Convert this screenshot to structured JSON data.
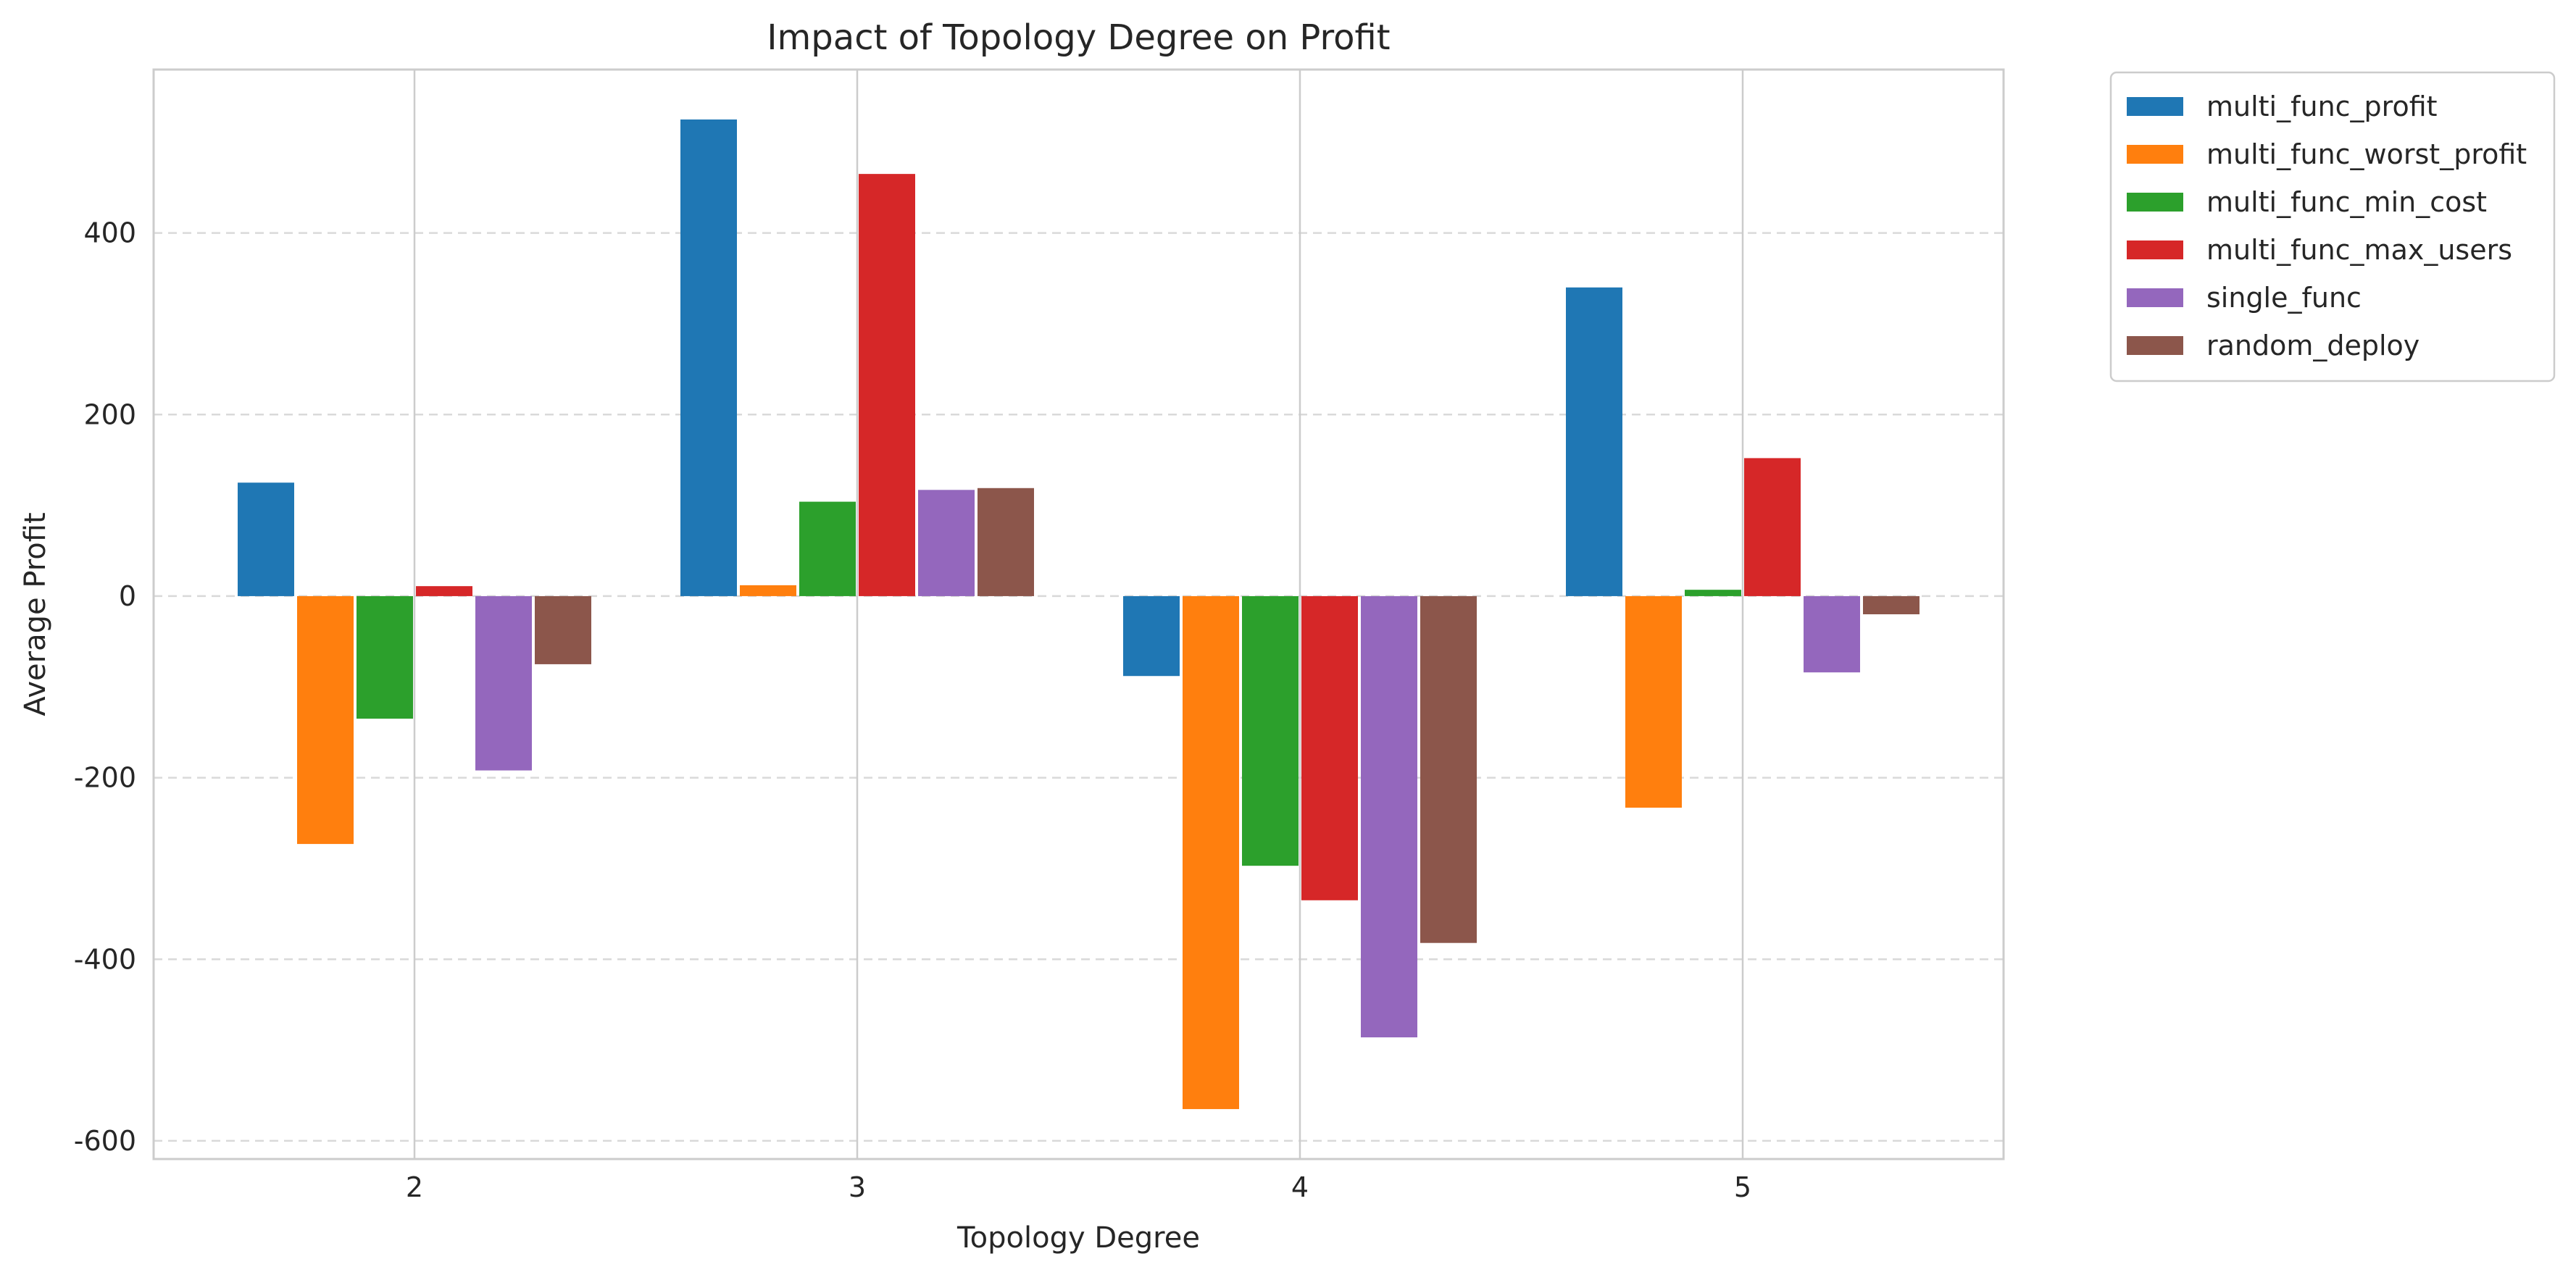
{
  "chart_data": {
    "type": "bar",
    "title": "Impact of Topology Degree on Profit",
    "xlabel": "Topology Degree",
    "ylabel": "Average Profit",
    "categories": [
      "2",
      "3",
      "4",
      "5"
    ],
    "ylim": [
      -620,
      580
    ],
    "yticks": [
      400,
      200,
      0,
      -200,
      -400,
      -600
    ],
    "ytick_labels": [
      "400",
      "200",
      "0",
      "-200",
      "-400",
      "-600"
    ],
    "grid": {
      "y": "dashed",
      "x": "solid"
    },
    "legend_placement": "outside-top-right",
    "series": [
      {
        "name": "multi_func_profit",
        "color": "#1f77b4",
        "values": [
          125,
          525,
          -88,
          340
        ]
      },
      {
        "name": "multi_func_worst_profit",
        "color": "#ff7f0e",
        "values": [
          -273,
          12,
          -565,
          -233
        ]
      },
      {
        "name": "multi_func_min_cost",
        "color": "#2ca02c",
        "values": [
          -135,
          104,
          -297,
          7
        ]
      },
      {
        "name": "multi_func_max_users",
        "color": "#d62728",
        "values": [
          11,
          465,
          -335,
          152
        ]
      },
      {
        "name": "single_func",
        "color": "#9467bd",
        "values": [
          -192,
          117,
          -486,
          -84
        ]
      },
      {
        "name": "random_deploy",
        "color": "#8c564b",
        "values": [
          -75,
          119,
          -382,
          -20
        ]
      }
    ]
  }
}
